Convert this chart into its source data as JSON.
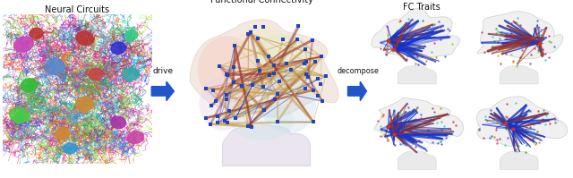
{
  "title_neural": "Neural Circuits",
  "title_fc": "Functional Connectivity",
  "title_fc_traits": "FC Traits",
  "label_drive": "drive",
  "label_decompose": "decompose",
  "bg_color": "#ffffff",
  "fig_width": 6.4,
  "fig_height": 1.99,
  "dpi": 100,
  "neural_colors": [
    "#e63333",
    "#cc2288",
    "#3333e6",
    "#2299cc",
    "#33aa33",
    "#88cc22",
    "#aa33aa",
    "#33aaaa",
    "#e6aa33",
    "#aa6633",
    "#6633aa",
    "#33aa66",
    "#e63399",
    "#99e633",
    "#3399e6",
    "#ff6600",
    "#00aaff",
    "#ff00aa"
  ],
  "arrow_color": "#2255cc",
  "node_color": "#2244bb",
  "fc_line_gold": "#c8a050",
  "fc_line_red": "#993322",
  "fc_line_blue": "#1133cc",
  "brain_face": "#e8d5c8",
  "brain_edge": "#c8b8aa"
}
